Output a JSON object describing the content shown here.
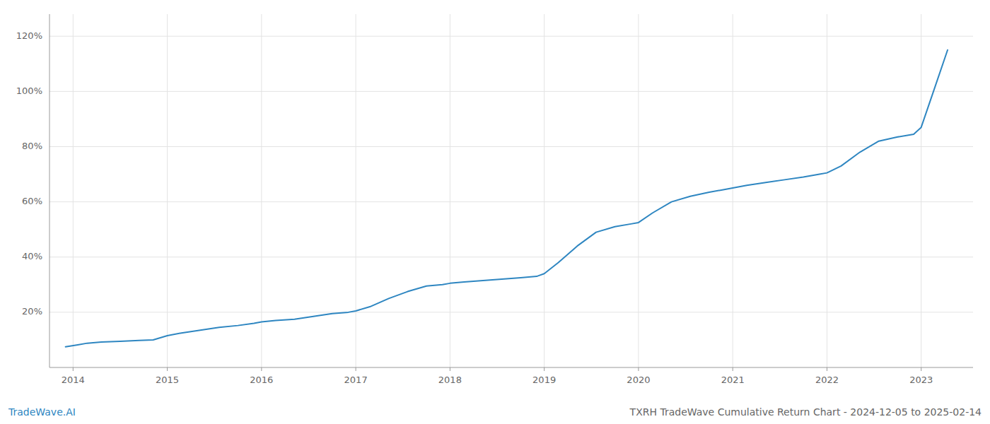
{
  "chart_data": {
    "type": "line",
    "title": "TXRH TradeWave Cumulative Return Chart - 2024-12-05 to 2025-02-14",
    "annotations": [
      "TradeWave.AI"
    ],
    "color": "#2e86c1",
    "grid": true,
    "x": [
      2013.92,
      2014.05,
      2014.15,
      2014.3,
      2014.5,
      2014.7,
      2014.85,
      2015.0,
      2015.15,
      2015.35,
      2015.55,
      2015.75,
      2015.92,
      2016.0,
      2016.15,
      2016.35,
      2016.55,
      2016.75,
      2016.92,
      2017.0,
      2017.15,
      2017.35,
      2017.55,
      2017.75,
      2017.92,
      2018.0,
      2018.15,
      2018.35,
      2018.55,
      2018.75,
      2018.92,
      2019.0,
      2019.15,
      2019.35,
      2019.55,
      2019.75,
      2019.92,
      2020.0,
      2020.15,
      2020.35,
      2020.55,
      2020.75,
      2020.92,
      2021.0,
      2021.15,
      2021.35,
      2021.55,
      2021.75,
      2021.92,
      2022.0,
      2022.15,
      2022.35,
      2022.55,
      2022.75,
      2022.92,
      2023.0,
      2023.15,
      2023.28
    ],
    "values": [
      7.5,
      8.2,
      8.8,
      9.2,
      9.5,
      9.8,
      10.0,
      11.5,
      12.5,
      13.5,
      14.5,
      15.2,
      16.0,
      16.5,
      17.0,
      17.5,
      18.5,
      19.5,
      20.0,
      20.5,
      22.0,
      25.0,
      27.5,
      29.5,
      30.0,
      30.5,
      31.0,
      31.5,
      32.0,
      32.5,
      33.0,
      34.0,
      38.0,
      44.0,
      49.0,
      51.0,
      52.0,
      52.5,
      56.0,
      60.0,
      62.0,
      63.5,
      64.5,
      65.0,
      66.0,
      67.0,
      68.0,
      69.0,
      70.0,
      70.5,
      73.0,
      78.0,
      82.0,
      83.5,
      84.5,
      87.0,
      102.0,
      115.0
    ],
    "xlim": [
      2013.75,
      2023.55
    ],
    "xticks": [
      2014,
      2015,
      2016,
      2017,
      2018,
      2019,
      2020,
      2021,
      2022,
      2023
    ],
    "ylim": [
      0,
      128
    ],
    "yticks": [
      {
        "value": 20,
        "label": "20%"
      },
      {
        "value": 40,
        "label": "40%"
      },
      {
        "value": 60,
        "label": "60%"
      },
      {
        "value": 80,
        "label": "80%"
      },
      {
        "value": 100,
        "label": "100%"
      },
      {
        "value": 120,
        "label": "120%"
      }
    ]
  }
}
